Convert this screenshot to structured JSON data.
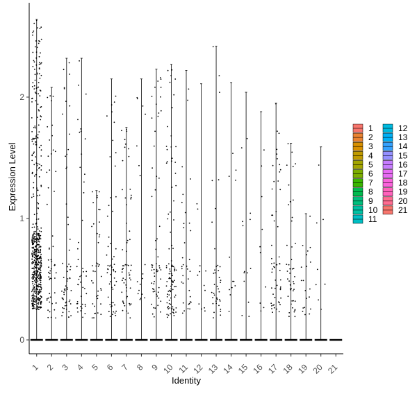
{
  "chart_data": {
    "type": "violin",
    "xlabel": "Identity",
    "ylabel": "Expression Level",
    "categories": [
      "1",
      "2",
      "3",
      "4",
      "5",
      "6",
      "7",
      "8",
      "9",
      "10",
      "11",
      "12",
      "13",
      "14",
      "15",
      "16",
      "17",
      "18",
      "19",
      "20",
      "21"
    ],
    "colors": [
      "#F8766D",
      "#EA8331",
      "#D89000",
      "#C09B00",
      "#A3A500",
      "#7CAE00",
      "#39B600",
      "#00BB4E",
      "#00BF7D",
      "#00C1A3",
      "#00BFC4",
      "#00BAE0",
      "#00B0F6",
      "#35A2FF",
      "#9590FF",
      "#C77CFF",
      "#E76BF3",
      "#FA62DB",
      "#FF62BC",
      "#FF6C91",
      "#F8766D"
    ],
    "max_values": [
      2.64,
      2.08,
      2.32,
      2.32,
      1.23,
      2.15,
      1.75,
      2.15,
      2.23,
      2.27,
      2.22,
      2.11,
      2.42,
      2.12,
      2.04,
      1.88,
      1.95,
      1.62,
      1.04,
      1.59,
      0.0
    ],
    "point_counts": [
      520,
      55,
      60,
      45,
      40,
      55,
      60,
      18,
      60,
      95,
      35,
      12,
      40,
      12,
      14,
      10,
      55,
      45,
      20,
      8,
      0
    ],
    "ylim": [
      -0.12,
      2.75
    ],
    "yticks": [
      0,
      1,
      2
    ],
    "legend": {
      "position": "right",
      "column1": [
        "1",
        "2",
        "3",
        "4",
        "5",
        "6",
        "7",
        "8",
        "9",
        "10",
        "11"
      ],
      "column2": [
        "12",
        "13",
        "14",
        "15",
        "16",
        "17",
        "18",
        "19",
        "20",
        "21"
      ]
    }
  }
}
